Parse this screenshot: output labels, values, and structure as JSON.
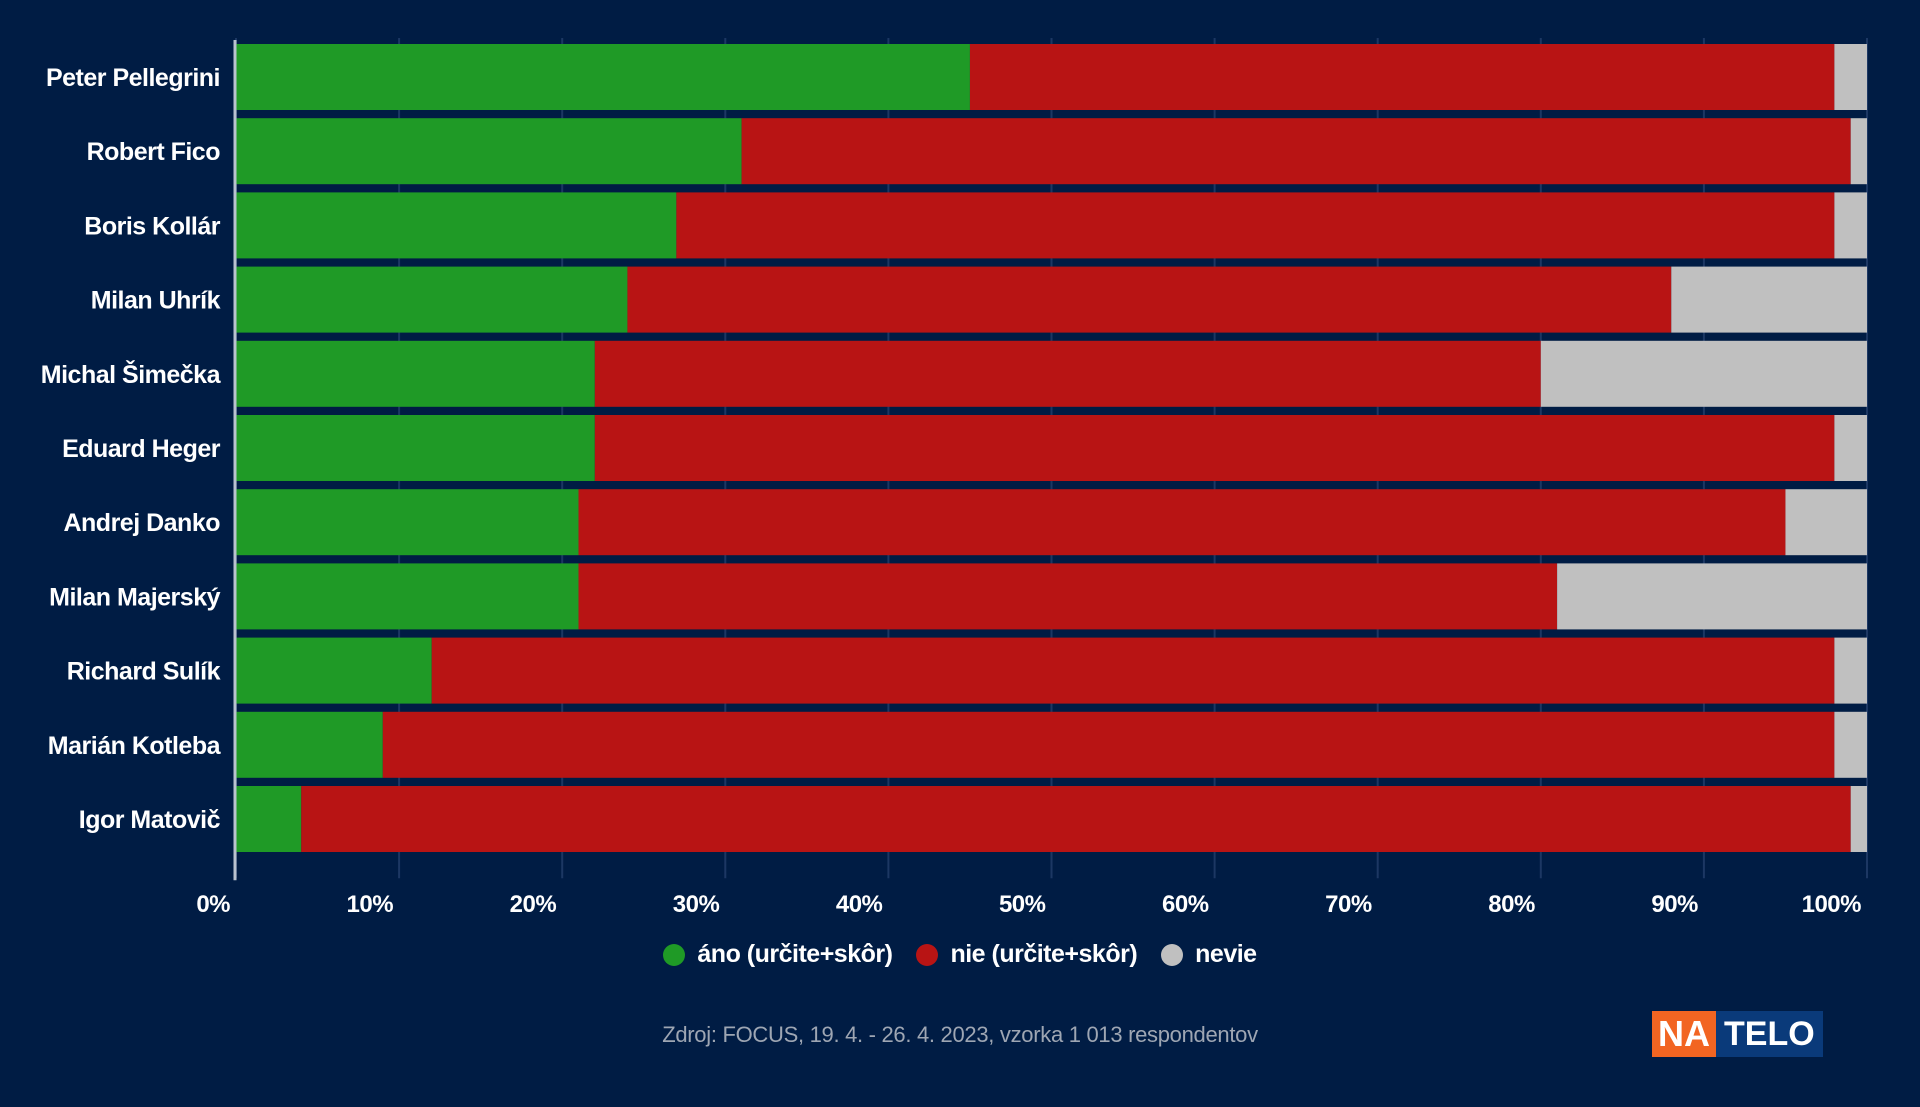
{
  "chart_data": {
    "type": "bar",
    "orientation": "horizontal",
    "stacked": true,
    "categories": [
      "Peter Pellegrini",
      "Robert Fico",
      "Boris Kollár",
      "Milan Uhrík",
      "Michal Šimečka",
      "Eduard Heger",
      "Andrej Danko",
      "Milan Majerský",
      "Richard Sulík",
      "Marián Kotleba",
      "Igor Matovič"
    ],
    "series": [
      {
        "name": "áno (určite+skôr)",
        "color": "#1f9a26",
        "values": [
          45,
          31,
          27,
          24,
          22,
          22,
          21,
          21,
          12,
          9,
          4
        ]
      },
      {
        "name": "nie (určite+skôr)",
        "color": "#b81414",
        "values": [
          53,
          68,
          71,
          64,
          58,
          76,
          74,
          60,
          86,
          89,
          95
        ]
      },
      {
        "name": "nevie",
        "color": "#c0c0c0",
        "values": [
          2,
          1,
          2,
          12,
          20,
          2,
          5,
          19,
          2,
          2,
          1
        ]
      }
    ],
    "xlim": [
      0,
      100
    ],
    "xticks": [
      "0%",
      "10%",
      "20%",
      "30%",
      "40%",
      "50%",
      "60%",
      "70%",
      "80%",
      "90%",
      "100%"
    ],
    "grid": true,
    "legend_position": "bottom-center",
    "title": "",
    "xlabel": "",
    "ylabel": ""
  },
  "footer": {
    "source": "Zdroj: FOCUS, 19. 4. - 26. 4. 2023, vzorka 1 013 respondentov",
    "logo_part1": "NA",
    "logo_part2": "TELO"
  },
  "colors": {
    "background": "#001c44",
    "grid": "#1c3763"
  }
}
